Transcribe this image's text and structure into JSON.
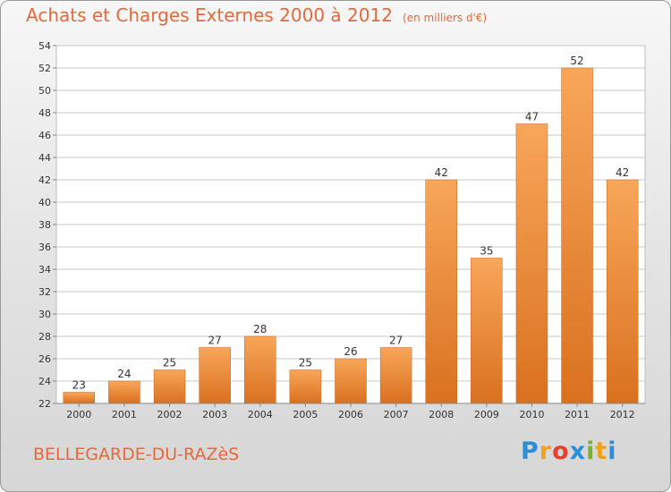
{
  "title": "Achats et Charges Externes 2000 à 2012",
  "unit": "(en milliers d'€)",
  "commune": "BELLEGARDE-DU-RAZèS",
  "logo": {
    "letters": [
      "P",
      "r",
      "o",
      "x",
      "i",
      "t",
      "i"
    ],
    "colors": [
      "#2a8fd8",
      "#f2a11c",
      "#e8402a",
      "#2a8fd8",
      "#79b52a",
      "#f2a11c",
      "#2a8fd8"
    ]
  },
  "colors": {
    "bar_top": "#f8a65a",
    "bar_bottom": "#d9711f",
    "title": "#e8683a",
    "grid": "#c8c8c8"
  },
  "chart_data": {
    "type": "bar",
    "categories": [
      "2000",
      "2001",
      "2002",
      "2003",
      "2004",
      "2005",
      "2006",
      "2007",
      "2008",
      "2009",
      "2010",
      "2011",
      "2012"
    ],
    "values": [
      23,
      24,
      25,
      27,
      28,
      25,
      26,
      27,
      42,
      35,
      47,
      52,
      42
    ],
    "ylim": [
      22,
      54
    ],
    "yticks": [
      22,
      24,
      26,
      28,
      30,
      32,
      34,
      36,
      38,
      40,
      42,
      44,
      46,
      48,
      50,
      52,
      54
    ],
    "grid": true,
    "data_labels": true
  }
}
